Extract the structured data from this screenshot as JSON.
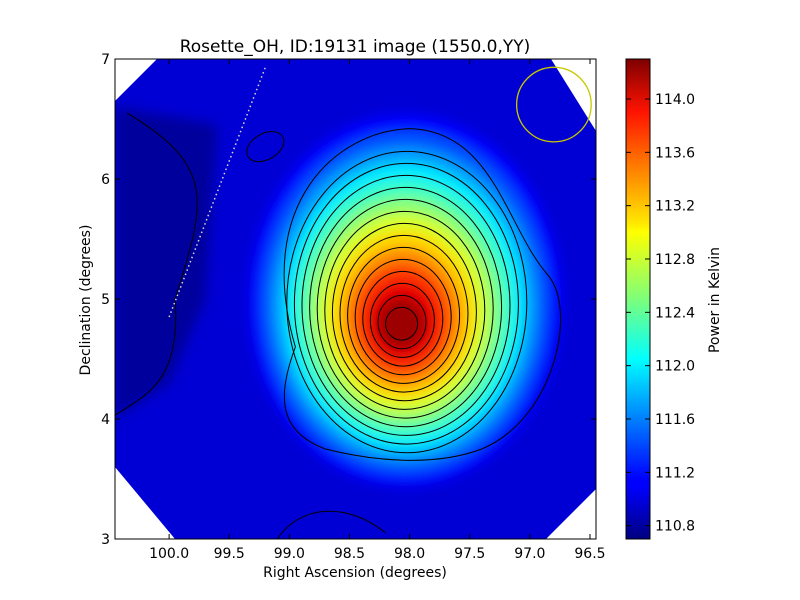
{
  "chart_data": {
    "type": "heatmap",
    "title": "Rosette_OH, ID:19131 image (1550.0,YY)",
    "xlabel": "Right Ascension (degrees)",
    "ylabel": "Declination (degrees)",
    "colorbar_label": "Power in Kelvin",
    "xlim": [
      100.45,
      96.45
    ],
    "ylim": [
      3,
      7
    ],
    "x_ticks": [
      100.0,
      99.5,
      99.0,
      98.5,
      98.0,
      97.5,
      97.0,
      96.5
    ],
    "x_tick_labels": [
      "100.0",
      "99.5",
      "99.0",
      "98.5",
      "98.0",
      "97.5",
      "97.0",
      "96.5"
    ],
    "y_ticks": [
      3,
      4,
      5,
      6,
      7
    ],
    "y_tick_labels": [
      "3",
      "4",
      "5",
      "6",
      "7"
    ],
    "colorbar_range": [
      110.7,
      114.3
    ],
    "colorbar_ticks": [
      110.8,
      111.2,
      111.6,
      112.0,
      112.4,
      112.8,
      113.2,
      113.6,
      114.0
    ],
    "colorbar_tick_labels": [
      "110.8",
      "111.2",
      "111.6",
      "112.0",
      "112.4",
      "112.8",
      "113.2",
      "113.6",
      "114.0"
    ],
    "colormap": "jet",
    "peak": {
      "ra": 98.07,
      "dec": 4.78,
      "value": 114.2
    },
    "background_level": 111.0,
    "contour_count": 16,
    "beam_circle": {
      "ra": 96.8,
      "dec": 6.62,
      "radius_deg": 0.31,
      "color": "#c8c800"
    },
    "galactic_plane_line": {
      "from": [
        100.0,
        4.85
      ],
      "to": [
        99.2,
        6.93
      ],
      "color": "#d8d8d8",
      "style": "dotted"
    }
  }
}
